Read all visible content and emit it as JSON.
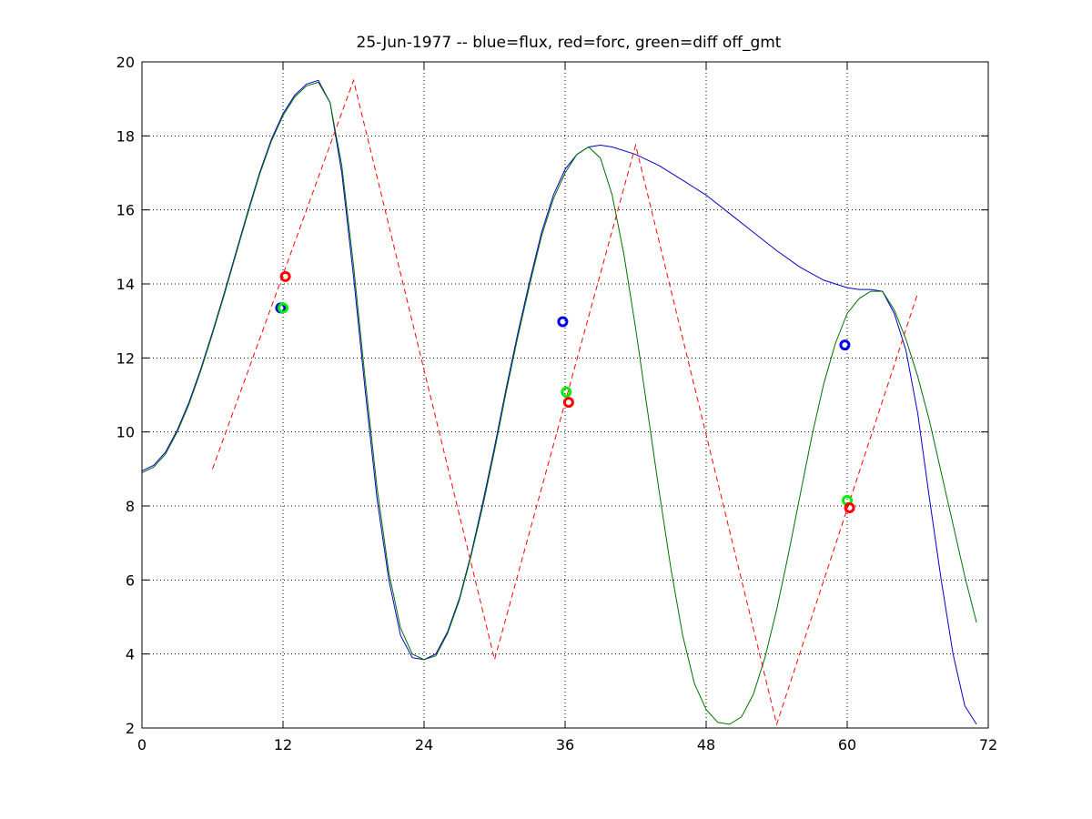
{
  "chart_data": {
    "type": "line",
    "title": "25-Jun-1977 -- blue=flux, red=forc, green=diff off_gmt",
    "xlabel": "",
    "ylabel": "",
    "xlim": [
      0,
      72
    ],
    "ylim": [
      2,
      20
    ],
    "xticks": [
      0,
      12,
      24,
      36,
      48,
      60,
      72
    ],
    "yticks": [
      2,
      4,
      6,
      8,
      10,
      12,
      14,
      16,
      18,
      20
    ],
    "grid": true,
    "series": [
      {
        "color": "#0000cc",
        "style": "solid",
        "x": [
          0,
          1,
          2,
          3,
          4,
          5,
          6,
          7,
          8,
          9,
          10,
          11,
          12,
          13,
          14,
          15,
          16,
          17,
          18,
          19,
          20,
          21,
          22,
          23,
          24,
          25,
          26,
          27,
          28,
          29,
          30,
          31,
          32,
          33,
          34,
          35,
          36,
          37,
          38,
          39,
          40,
          42,
          44,
          46,
          48,
          50,
          52,
          54,
          56,
          58,
          60,
          61,
          62,
          63,
          64,
          65,
          66,
          67,
          68,
          69,
          70,
          71
        ],
        "y": [
          8.95,
          9.1,
          9.45,
          10.05,
          10.8,
          11.7,
          12.7,
          13.75,
          14.85,
          15.95,
          17.0,
          17.9,
          18.6,
          19.1,
          19.4,
          19.5,
          18.9,
          17.0,
          14.2,
          11.1,
          8.2,
          6.0,
          4.5,
          3.9,
          3.85,
          4.0,
          4.6,
          5.5,
          6.7,
          8.1,
          9.6,
          11.2,
          12.7,
          14.1,
          15.4,
          16.4,
          17.1,
          17.5,
          17.7,
          17.75,
          17.7,
          17.5,
          17.2,
          16.8,
          16.4,
          15.9,
          15.4,
          14.9,
          14.45,
          14.1,
          13.9,
          13.85,
          13.85,
          13.8,
          13.2,
          12.2,
          10.5,
          8.2,
          6.0,
          4.0,
          2.6,
          2.1
        ]
      },
      {
        "color": "#007000",
        "style": "solid",
        "x": [
          0,
          1,
          2,
          3,
          4,
          5,
          6,
          7,
          8,
          9,
          10,
          11,
          12,
          13,
          14,
          15,
          16,
          17,
          18,
          19,
          20,
          21,
          22,
          23,
          24,
          25,
          26,
          27,
          28,
          29,
          30,
          31,
          32,
          33,
          34,
          35,
          36,
          37,
          38,
          39,
          40,
          41,
          42,
          43,
          44,
          45,
          46,
          47,
          48,
          49,
          50,
          51,
          52,
          53,
          54,
          55,
          56,
          57,
          58,
          59,
          60,
          61,
          62,
          63,
          64,
          65,
          66,
          67,
          68,
          69,
          70,
          71
        ],
        "y": [
          8.9,
          9.05,
          9.4,
          10.0,
          10.75,
          11.65,
          12.65,
          13.7,
          14.8,
          15.9,
          16.95,
          17.85,
          18.55,
          19.05,
          19.35,
          19.45,
          18.9,
          17.2,
          14.5,
          11.4,
          8.5,
          6.2,
          4.7,
          4.0,
          3.85,
          3.95,
          4.55,
          5.45,
          6.65,
          8.0,
          9.5,
          11.1,
          12.6,
          14.0,
          15.3,
          16.3,
          17.0,
          17.5,
          17.7,
          17.4,
          16.4,
          14.8,
          12.8,
          10.6,
          8.4,
          6.3,
          4.5,
          3.2,
          2.5,
          2.15,
          2.1,
          2.3,
          2.9,
          3.9,
          5.2,
          6.7,
          8.3,
          9.9,
          11.3,
          12.4,
          13.2,
          13.6,
          13.8,
          13.8,
          13.3,
          12.5,
          11.5,
          10.3,
          8.9,
          7.5,
          6.1,
          4.85
        ]
      },
      {
        "color": "#ff0000",
        "style": "dashed",
        "x": [
          6,
          18,
          30,
          42,
          54,
          66
        ],
        "y": [
          9.0,
          19.5,
          3.85,
          17.75,
          2.1,
          13.75
        ]
      }
    ],
    "markers": [
      {
        "color": "#0000ee",
        "x": 11.8,
        "y": 13.35
      },
      {
        "color": "#00ee00",
        "x": 12.0,
        "y": 13.35
      },
      {
        "color": "#ff0000",
        "x": 12.2,
        "y": 14.2
      },
      {
        "color": "#0000ee",
        "x": 35.8,
        "y": 12.98
      },
      {
        "color": "#00ee00",
        "x": 36.1,
        "y": 11.08
      },
      {
        "color": "#ff0000",
        "x": 36.3,
        "y": 10.8
      },
      {
        "color": "#0000ee",
        "x": 59.8,
        "y": 12.35
      },
      {
        "color": "#00ee00",
        "x": 60.0,
        "y": 8.15
      },
      {
        "color": "#ff0000",
        "x": 60.2,
        "y": 7.95
      }
    ]
  }
}
